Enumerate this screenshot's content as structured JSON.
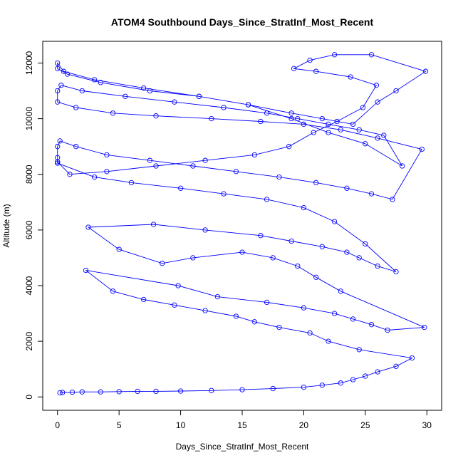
{
  "chart_data": {
    "type": "line",
    "title": "ATOM4 Southbound Days_Since_StratInf_Most_Recent",
    "xlabel": "Days_Since_StratInf_Most_Recent",
    "ylabel": "Altitude (m)",
    "xlim": [
      -1.2,
      31.2
    ],
    "ylim": [
      -480,
      12780
    ],
    "xticks": [
      0,
      5,
      10,
      15,
      20,
      25,
      30
    ],
    "yticks": [
      0,
      2000,
      4000,
      6000,
      8000,
      10000,
      12000
    ],
    "xtick_labels": [
      "0",
      "5",
      "10",
      "15",
      "20",
      "25",
      "30"
    ],
    "ytick_labels": [
      "0",
      "2000",
      "4000",
      "6000",
      "8000",
      "10000",
      "12000"
    ],
    "grid": false,
    "series": [
      {
        "color": "#0000ff",
        "marker": "open-circle",
        "x": [
          0.2,
          0.4,
          1.2,
          2.0,
          3.5,
          5.0,
          6.5,
          8.0,
          10.0,
          12.5,
          15.0,
          17.5,
          20.0,
          21.5,
          23.0,
          24.0,
          25.0,
          26.0,
          27.5,
          28.8,
          24.5,
          22.0,
          20.5,
          18.0,
          16.0,
          14.5,
          12.0,
          9.5,
          7.0,
          4.5,
          2.3,
          9.8,
          13.0,
          17.0,
          20.0,
          22.5,
          24.0,
          25.5,
          26.8,
          29.8,
          23.0,
          21.0,
          19.5,
          17.5,
          15.0,
          11.0,
          8.5,
          5.0,
          2.5,
          7.8,
          12.0,
          16.5,
          19.0,
          21.5,
          23.5,
          24.5,
          26.0,
          27.5,
          25.0,
          22.5,
          20.0,
          17.0,
          13.5,
          10.0,
          6.0,
          3.0,
          0.0,
          0.0,
          0.0,
          0.2,
          1.5,
          4.0,
          7.5,
          11.0,
          14.5,
          18.0,
          21.0,
          23.5,
          25.5,
          27.2,
          29.6,
          26.0,
          23.0,
          20.0,
          16.5,
          12.5,
          8.0,
          4.5,
          1.5,
          0.0,
          0.0,
          0.3,
          2.0,
          5.5,
          9.5,
          13.5,
          17.0,
          19.5,
          22.0,
          24.5,
          26.5,
          28.0,
          25.0,
          22.0,
          19.0,
          15.5,
          11.5,
          7.5,
          3.5,
          0.8,
          0.0,
          0.0,
          0.5,
          3.0,
          7.0,
          11.5,
          15.5,
          19.0,
          21.5,
          24.0,
          26.0,
          27.5,
          29.9,
          25.5,
          22.5,
          20.5,
          19.2,
          21.0,
          23.8,
          25.9,
          24.8,
          22.7,
          20.8,
          18.8,
          16.0,
          12.0,
          8.0,
          4.0,
          1.0,
          0.0
        ],
        "y": [
          150,
          160,
          170,
          180,
          180,
          190,
          200,
          200,
          210,
          230,
          260,
          300,
          350,
          420,
          500,
          620,
          750,
          900,
          1100,
          1400,
          1700,
          2000,
          2300,
          2500,
          2700,
          2900,
          3100,
          3300,
          3500,
          3800,
          4550,
          4000,
          3600,
          3400,
          3200,
          3000,
          2800,
          2600,
          2400,
          2500,
          3800,
          4300,
          4700,
          5000,
          5200,
          5000,
          4800,
          5300,
          6100,
          6200,
          6000,
          5800,
          5600,
          5400,
          5200,
          5000,
          4700,
          4500,
          5500,
          6300,
          6800,
          7100,
          7300,
          7500,
          7700,
          7900,
          8400,
          8600,
          9000,
          9200,
          9000,
          8700,
          8500,
          8300,
          8100,
          7900,
          7700,
          7500,
          7300,
          7100,
          8900,
          9300,
          9600,
          9800,
          9900,
          10000,
          10100,
          10200,
          10400,
          10600,
          11000,
          11200,
          11000,
          10800,
          10600,
          10400,
          10200,
          10000,
          9800,
          9600,
          9400,
          8300,
          9100,
          9500,
          10000,
          10500,
          10800,
          11000,
          11300,
          11600,
          11800,
          12000,
          11700,
          11400,
          11100,
          10800,
          10500,
          10200,
          10000,
          9800,
          10600,
          11000,
          11700,
          12300,
          12300,
          12100,
          11800,
          11700,
          11500,
          11200,
          10400,
          9900,
          9500,
          9000,
          8700,
          8500,
          8300,
          8100,
          8000,
          8450
        ]
      }
    ]
  }
}
